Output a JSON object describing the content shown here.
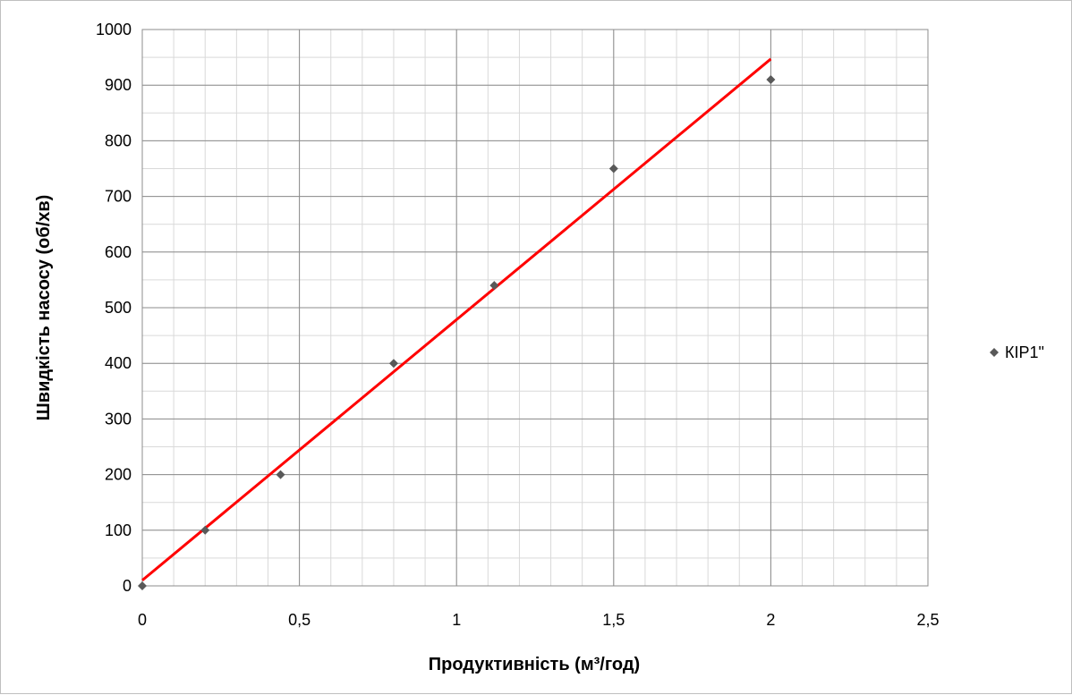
{
  "chart_data": {
    "type": "scatter",
    "title": "",
    "xlabel": "Продуктивність (м³/год)",
    "ylabel": "Швидкість насосу (об/хв)",
    "xlim": [
      0,
      2.5
    ],
    "ylim": [
      0,
      1000
    ],
    "x_ticks": [
      0,
      0.5,
      1,
      1.5,
      2,
      2.5
    ],
    "x_tick_labels": [
      "0",
      "0,5",
      "1",
      "1,5",
      "2",
      "2,5"
    ],
    "y_ticks": [
      0,
      100,
      200,
      300,
      400,
      500,
      600,
      700,
      800,
      900,
      1000
    ],
    "y_tick_labels": [
      "0",
      "100",
      "200",
      "300",
      "400",
      "500",
      "600",
      "700",
      "800",
      "900",
      "1000"
    ],
    "grid": true,
    "legend_position": "right",
    "series": [
      {
        "name": "КІР1\"",
        "marker": "diamond",
        "color": "#595959",
        "x": [
          0,
          0.2,
          0.44,
          0.8,
          1.12,
          1.5,
          2.0
        ],
        "y": [
          0,
          100,
          200,
          400,
          540,
          750,
          910
        ]
      }
    ],
    "trendline": {
      "type": "linear",
      "color": "#ff0000",
      "x": [
        0,
        2.0
      ],
      "y": [
        10,
        947
      ]
    }
  }
}
